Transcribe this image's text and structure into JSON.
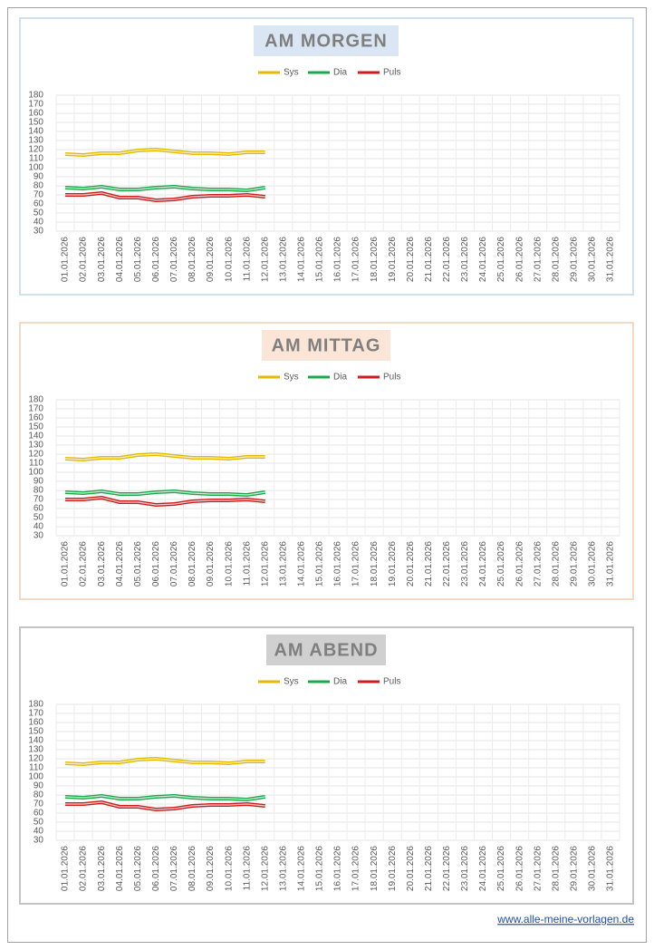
{
  "chart_data": [
    {
      "type": "line",
      "title": "AM MORGEN",
      "categories": [
        "01.01.2026",
        "02.01.2026",
        "03.01.2026",
        "04.01.2026",
        "05.01.2026",
        "06.01.2026",
        "07.01.2026",
        "08.01.2026",
        "09.01.2026",
        "10.01.2026",
        "11.01.2026",
        "12.01.2026",
        "13.01.2026",
        "14.01.2026",
        "15.01.2026",
        "16.01.2026",
        "17.01.2026",
        "18.01.2026",
        "19.01.2026",
        "20.01.2026",
        "21.01.2026",
        "22.01.2026",
        "23.01.2026",
        "24.01.2026",
        "25.01.2026",
        "26.01.2026",
        "27.01.2026",
        "28.01.2026",
        "29.01.2026",
        "30.01.2026",
        "31.01.2026"
      ],
      "series": [
        {
          "name": "Sys",
          "color": "#e6b800",
          "values": [
            115,
            114,
            116,
            116,
            119,
            120,
            118,
            116,
            116,
            115,
            117,
            117,
            null,
            null,
            null,
            null,
            null,
            null,
            null,
            null,
            null,
            null,
            null,
            null,
            null,
            null,
            null,
            null,
            null,
            null,
            null
          ]
        },
        {
          "name": "Dia",
          "color": "#1aa84a",
          "values": [
            78,
            77,
            79,
            76,
            76,
            78,
            79,
            77,
            76,
            76,
            75,
            78,
            null,
            null,
            null,
            null,
            null,
            null,
            null,
            null,
            null,
            null,
            null,
            null,
            null,
            null,
            null,
            null,
            null,
            null,
            null
          ]
        },
        {
          "name": "Puls",
          "color": "#d11a1a",
          "values": [
            70,
            70,
            72,
            67,
            67,
            64,
            65,
            68,
            69,
            69,
            70,
            68,
            null,
            null,
            null,
            null,
            null,
            null,
            null,
            null,
            null,
            null,
            null,
            null,
            null,
            null,
            null,
            null,
            null,
            null,
            null
          ]
        }
      ],
      "ylim": [
        30,
        180
      ],
      "yticks": [
        30,
        40,
        50,
        60,
        70,
        80,
        90,
        100,
        110,
        120,
        130,
        140,
        150,
        160,
        170,
        180
      ],
      "grid": true,
      "legend": "top"
    },
    {
      "type": "line",
      "title": "AM MITTAG",
      "categories": [
        "01.01.2026",
        "02.01.2026",
        "03.01.2026",
        "04.01.2026",
        "05.01.2026",
        "06.01.2026",
        "07.01.2026",
        "08.01.2026",
        "09.01.2026",
        "10.01.2026",
        "11.01.2026",
        "12.01.2026",
        "13.01.2026",
        "14.01.2026",
        "15.01.2026",
        "16.01.2026",
        "17.01.2026",
        "18.01.2026",
        "19.01.2026",
        "20.01.2026",
        "21.01.2026",
        "22.01.2026",
        "23.01.2026",
        "24.01.2026",
        "25.01.2026",
        "26.01.2026",
        "27.01.2026",
        "28.01.2026",
        "29.01.2026",
        "30.01.2026",
        "31.01.2026"
      ],
      "series": [
        {
          "name": "Sys",
          "color": "#e6b800",
          "values": [
            115,
            114,
            116,
            116,
            119,
            120,
            118,
            116,
            116,
            115,
            117,
            117,
            null,
            null,
            null,
            null,
            null,
            null,
            null,
            null,
            null,
            null,
            null,
            null,
            null,
            null,
            null,
            null,
            null,
            null,
            null
          ]
        },
        {
          "name": "Dia",
          "color": "#1aa84a",
          "values": [
            78,
            77,
            79,
            76,
            76,
            78,
            79,
            77,
            76,
            76,
            75,
            78,
            null,
            null,
            null,
            null,
            null,
            null,
            null,
            null,
            null,
            null,
            null,
            null,
            null,
            null,
            null,
            null,
            null,
            null,
            null
          ]
        },
        {
          "name": "Puls",
          "color": "#d11a1a",
          "values": [
            70,
            70,
            72,
            67,
            67,
            64,
            65,
            68,
            69,
            69,
            70,
            68,
            null,
            null,
            null,
            null,
            null,
            null,
            null,
            null,
            null,
            null,
            null,
            null,
            null,
            null,
            null,
            null,
            null,
            null,
            null
          ]
        }
      ],
      "ylim": [
        30,
        180
      ],
      "yticks": [
        30,
        40,
        50,
        60,
        70,
        80,
        90,
        100,
        110,
        120,
        130,
        140,
        150,
        160,
        170,
        180
      ],
      "grid": true,
      "legend": "top"
    },
    {
      "type": "line",
      "title": "AM ABEND",
      "categories": [
        "01.01.2026",
        "02.01.2026",
        "03.01.2026",
        "04.01.2026",
        "05.01.2026",
        "06.01.2026",
        "07.01.2026",
        "08.01.2026",
        "09.01.2026",
        "10.01.2026",
        "11.01.2026",
        "12.01.2026",
        "13.01.2026",
        "14.01.2026",
        "15.01.2026",
        "16.01.2026",
        "17.01.2026",
        "18.01.2026",
        "19.01.2026",
        "20.01.2026",
        "21.01.2026",
        "22.01.2026",
        "23.01.2026",
        "24.01.2026",
        "25.01.2026",
        "26.01.2026",
        "27.01.2026",
        "28.01.2026",
        "29.01.2026",
        "30.01.2026",
        "31.01.2026"
      ],
      "series": [
        {
          "name": "Sys",
          "color": "#e6b800",
          "values": [
            115,
            114,
            116,
            116,
            119,
            120,
            118,
            116,
            116,
            115,
            117,
            117,
            null,
            null,
            null,
            null,
            null,
            null,
            null,
            null,
            null,
            null,
            null,
            null,
            null,
            null,
            null,
            null,
            null,
            null,
            null
          ]
        },
        {
          "name": "Dia",
          "color": "#1aa84a",
          "values": [
            78,
            77,
            79,
            76,
            76,
            78,
            79,
            77,
            76,
            76,
            75,
            78,
            null,
            null,
            null,
            null,
            null,
            null,
            null,
            null,
            null,
            null,
            null,
            null,
            null,
            null,
            null,
            null,
            null,
            null,
            null
          ]
        },
        {
          "name": "Puls",
          "color": "#d11a1a",
          "values": [
            70,
            70,
            72,
            67,
            67,
            64,
            65,
            68,
            69,
            69,
            70,
            68,
            null,
            null,
            null,
            null,
            null,
            null,
            null,
            null,
            null,
            null,
            null,
            null,
            null,
            null,
            null,
            null,
            null,
            null,
            null
          ]
        }
      ],
      "ylim": [
        30,
        180
      ],
      "yticks": [
        30,
        40,
        50,
        60,
        70,
        80,
        90,
        100,
        110,
        120,
        130,
        140,
        150,
        160,
        170,
        180
      ],
      "grid": true,
      "legend": "top"
    }
  ],
  "footer": "www.alle-meine-vorlagen.de"
}
